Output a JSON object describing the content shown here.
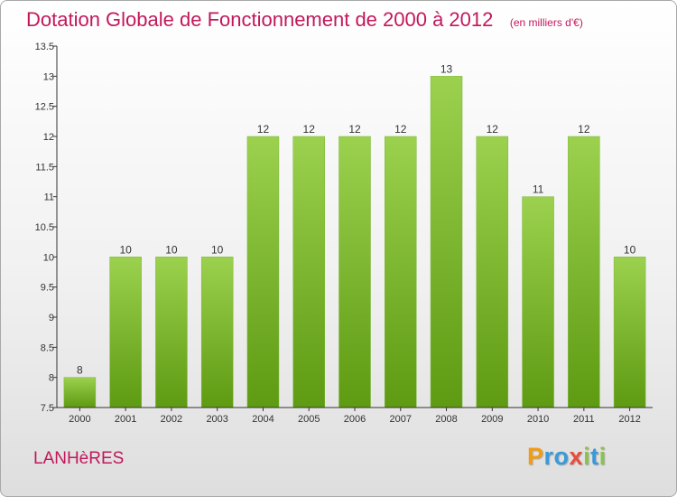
{
  "title": "Dotation Globale de Fonctionnement de 2000 à 2012",
  "subtitle": "(en milliers d'€)",
  "commune": "LANHèRES",
  "logo": {
    "text": "Proxiti",
    "letters": [
      {
        "char": "P",
        "color": "#f39c12"
      },
      {
        "char": "r",
        "color": "#3a9ad9"
      },
      {
        "char": "o",
        "color": "#3a9ad9"
      },
      {
        "char": "x",
        "color": "#e74c3c"
      },
      {
        "char": "i",
        "color": "#8bc34a"
      },
      {
        "char": "t",
        "color": "#3a9ad9"
      },
      {
        "char": "i",
        "color": "#8bc34a"
      }
    ]
  },
  "chart_data": {
    "type": "bar",
    "title": "Dotation Globale de Fonctionnement de 2000 à 2012",
    "subtitle": "(en milliers d'€)",
    "xlabel": "",
    "ylabel": "",
    "categories": [
      "2000",
      "2001",
      "2002",
      "2003",
      "2004",
      "2005",
      "2006",
      "2007",
      "2008",
      "2009",
      "2010",
      "2011",
      "2012"
    ],
    "values": [
      8,
      10,
      10,
      10,
      12,
      12,
      12,
      12,
      13,
      12,
      11,
      12,
      10
    ],
    "value_labels": [
      "8",
      "10",
      "10",
      "10",
      "12",
      "12",
      "12",
      "12",
      "13",
      "12",
      "11",
      "12",
      "10"
    ],
    "ylim": [
      7.5,
      13.5
    ],
    "yticks": [
      7.5,
      8,
      8.5,
      9,
      9.5,
      10,
      10.5,
      11,
      11.5,
      12,
      12.5,
      13,
      13.5
    ],
    "ytick_labels": [
      "7.5",
      "8",
      "8.5",
      "9",
      "9.5",
      "10",
      "10.5",
      "11",
      "11.5",
      "12",
      "12.5",
      "13",
      "13.5"
    ],
    "grid": false,
    "bar_color_top": "#9bd14e",
    "bar_color_bottom": "#5e9a12"
  }
}
